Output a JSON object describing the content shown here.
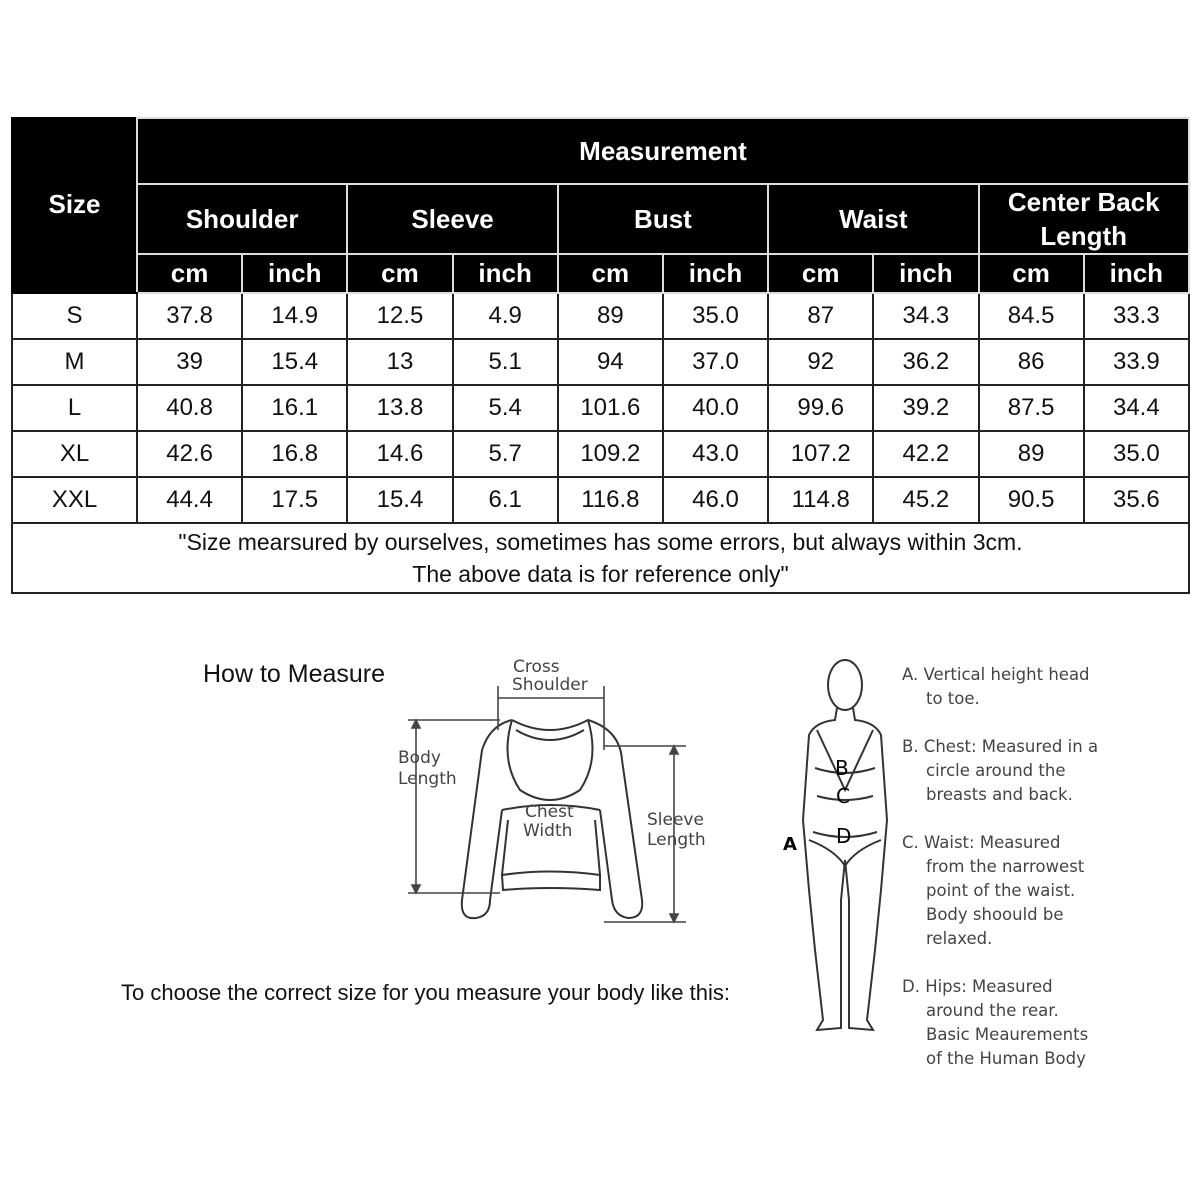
{
  "table": {
    "size_header": "Size",
    "measurement_header": "Measurement",
    "groups": [
      "Shoulder",
      "Sleeve",
      "Bust",
      "Waist",
      "Center Back Length"
    ],
    "units": [
      "cm",
      "inch"
    ],
    "rows": [
      {
        "size": "S",
        "values": [
          "37.8",
          "14.9",
          "12.5",
          "4.9",
          "89",
          "35.0",
          "87",
          "34.3",
          "84.5",
          "33.3"
        ]
      },
      {
        "size": "M",
        "values": [
          "39",
          "15.4",
          "13",
          "5.1",
          "94",
          "37.0",
          "92",
          "36.2",
          "86",
          "33.9"
        ]
      },
      {
        "size": "L",
        "values": [
          "40.8",
          "16.1",
          "13.8",
          "5.4",
          "101.6",
          "40.0",
          "99.6",
          "39.2",
          "87.5",
          "34.4"
        ]
      },
      {
        "size": "XL",
        "values": [
          "42.6",
          "16.8",
          "14.6",
          "5.7",
          "109.2",
          "43.0",
          "107.2",
          "42.2",
          "89",
          "35.0"
        ]
      },
      {
        "size": "XXL",
        "values": [
          "44.4",
          "17.5",
          "15.4",
          "6.1",
          "116.8",
          "46.0",
          "114.8",
          "45.2",
          "90.5",
          "35.6"
        ]
      }
    ],
    "note_line1": "\"Size mearsured by ourselves, sometimes has some errors, but always within 3cm.",
    "note_line2": "The above data is for reference only\""
  },
  "guide": {
    "title": "How to Measure",
    "instruction": "To choose the correct size for you measure your body like this:",
    "garment_labels": {
      "cross": "Cross",
      "shoulder": "Shoulder",
      "body": "Body",
      "length": "Length",
      "chest": "Chest",
      "width": "Width",
      "sleeve": "Sleeve",
      "sleeve_length": "Length"
    },
    "body_markers": [
      "A",
      "B",
      "C",
      "D"
    ],
    "descriptions": [
      [
        "A. Vertical height head",
        "to toe."
      ],
      [
        "B. Chest: Measured in a",
        "circle around the",
        "breasts and back."
      ],
      [
        "C. Waist: Measured",
        "from the narrowest",
        "point of the waist.",
        "Body shoould be",
        "relaxed."
      ],
      [
        "D. Hips: Measured",
        "around the rear.",
        "Basic Meaurements",
        "of the Human Body"
      ]
    ]
  }
}
